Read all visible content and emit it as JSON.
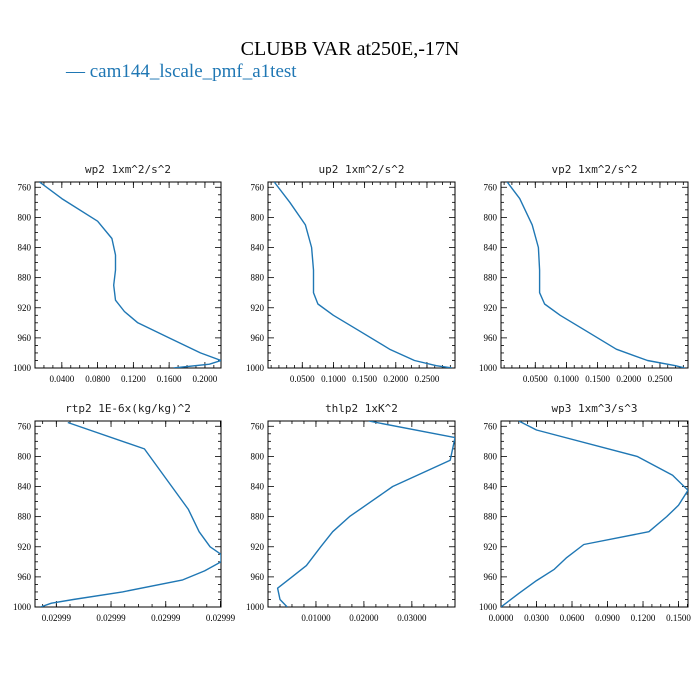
{
  "figure": {
    "title": "CLUBB VAR at250E,-17N",
    "legend": "— cam144_lscale_pmf_a1test"
  },
  "colors": {
    "series": "#1f77b4",
    "axis": "#000000"
  },
  "chart_data": [
    {
      "type": "line",
      "title": "wp2  1xm^2/s^2",
      "series": [
        {
          "name": "cam144_lscale_pmf_a1test",
          "x": [
            0.015,
            0.04,
            0.08,
            0.096,
            0.1,
            0.1,
            0.098,
            0.1,
            0.11,
            0.125,
            0.16,
            0.195,
            0.218,
            0.205,
            0.165
          ],
          "y": [
            753,
            775,
            805,
            828,
            850,
            870,
            890,
            910,
            925,
            940,
            960,
            980,
            990,
            995,
            1000
          ]
        }
      ],
      "xlim": [
        0.01,
        0.218
      ],
      "ylim": [
        1000,
        753
      ],
      "xticks": [
        0.04,
        0.08,
        0.12,
        0.16,
        0.2
      ],
      "xticklabels": [
        "0.0400",
        "0.0800",
        "0.1200",
        "0.1600",
        "0.2000"
      ],
      "yticks": [
        760,
        800,
        840,
        880,
        920,
        960,
        1000
      ],
      "yticklabels": [
        "760",
        "800",
        "840",
        "880",
        "920",
        "960",
        "1000"
      ]
    },
    {
      "type": "line",
      "title": "up2  1xm^2/s^2",
      "series": [
        {
          "name": "cam144_lscale_pmf_a1test",
          "x": [
            0.005,
            0.03,
            0.055,
            0.065,
            0.068,
            0.068,
            0.075,
            0.1,
            0.14,
            0.19,
            0.23,
            0.265,
            0.29
          ],
          "y": [
            753,
            780,
            810,
            840,
            870,
            900,
            915,
            930,
            950,
            975,
            990,
            997,
            1000
          ]
        }
      ],
      "xlim": [
        -0.005,
        0.295
      ],
      "ylim": [
        1000,
        753
      ],
      "xticks": [
        0.05,
        0.1,
        0.15,
        0.2,
        0.25
      ],
      "xticklabels": [
        "0.0500",
        "0.1000",
        "0.1500",
        "0.2000",
        "0.2500"
      ],
      "yticks": [
        760,
        800,
        840,
        880,
        920,
        960,
        1000
      ],
      "yticklabels": [
        "760",
        "800",
        "840",
        "880",
        "920",
        "960",
        "1000"
      ]
    },
    {
      "type": "line",
      "title": "vp2  1xm^2/s^2",
      "series": [
        {
          "name": "cam144_lscale_pmf_a1test",
          "x": [
            0.005,
            0.025,
            0.045,
            0.055,
            0.057,
            0.057,
            0.065,
            0.09,
            0.13,
            0.18,
            0.23,
            0.275,
            0.29
          ],
          "y": [
            753,
            775,
            810,
            840,
            870,
            900,
            915,
            930,
            950,
            975,
            990,
            997,
            1000
          ]
        }
      ],
      "xlim": [
        -0.005,
        0.295
      ],
      "ylim": [
        1000,
        753
      ],
      "xticks": [
        0.05,
        0.1,
        0.15,
        0.2,
        0.25
      ],
      "xticklabels": [
        "0.0500",
        "0.1000",
        "0.1500",
        "0.2000",
        "0.2500"
      ],
      "yticks": [
        760,
        800,
        840,
        880,
        920,
        960,
        1000
      ],
      "yticklabels": [
        "760",
        "800",
        "840",
        "880",
        "920",
        "960",
        "1000"
      ]
    },
    {
      "type": "line",
      "title": "rtp2  1E-6x(kg/kg)^2",
      "series": [
        {
          "name": "cam144_lscale_pmf_a1test",
          "x": [
            0.0299972,
            0.0299986,
            0.029999,
            0.0299994,
            0.0299996,
            0.0299998,
            0.03,
            0.03,
            0.0299997,
            0.0299993,
            0.0299982,
            0.0299973,
            0.0299969,
            0.0299967
          ],
          "y": [
            755,
            790,
            830,
            870,
            900,
            920,
            930,
            940,
            952,
            964,
            980,
            990,
            995,
            1000
          ]
        }
      ],
      "xlim": [
        0.0299966,
        0.03
      ],
      "ylim": [
        1000,
        753
      ],
      "xticks": [
        0.02999699,
        0.02999799,
        0.02999899,
        0.02999999
      ],
      "xticklabels": [
        "0.02999",
        "0.02999",
        "0.02999",
        "0.02999"
      ],
      "yticks": [
        760,
        800,
        840,
        880,
        920,
        960,
        1000
      ],
      "yticklabels": [
        "760",
        "800",
        "840",
        "880",
        "920",
        "960",
        "1000"
      ]
    },
    {
      "type": "line",
      "title": "thlp2  1xK^2",
      "series": [
        {
          "name": "cam144_lscale_pmf_a1test",
          "x": [
            0.021,
            0.039,
            0.038,
            0.026,
            0.0215,
            0.017,
            0.0135,
            0.011,
            0.008,
            0.005,
            0.002,
            0.0025,
            0.004
          ],
          "y": [
            753,
            775,
            805,
            840,
            860,
            880,
            900,
            920,
            945,
            960,
            975,
            990,
            1000
          ]
        }
      ],
      "xlim": [
        0.0,
        0.039
      ],
      "ylim": [
        1000,
        753
      ],
      "xticks": [
        0.01,
        0.02,
        0.03
      ],
      "xticklabels": [
        "0.01000",
        "0.02000",
        "0.03000"
      ],
      "yticks": [
        760,
        800,
        840,
        880,
        920,
        960,
        1000
      ],
      "yticklabels": [
        "760",
        "800",
        "840",
        "880",
        "920",
        "960",
        "1000"
      ]
    },
    {
      "type": "line",
      "title": "wp3  1xm^3/s^3",
      "series": [
        {
          "name": "cam144_lscale_pmf_a1test",
          "x": [
            0.015,
            0.03,
            0.115,
            0.145,
            0.158,
            0.15,
            0.14,
            0.125,
            0.07,
            0.055,
            0.045,
            0.03,
            0.015,
            0.0
          ],
          "y": [
            753,
            765,
            800,
            825,
            845,
            865,
            880,
            900,
            917,
            935,
            950,
            965,
            982,
            1000
          ]
        }
      ],
      "xlim": [
        0.0,
        0.158
      ],
      "ylim": [
        1000,
        753
      ],
      "xticks": [
        0.0,
        0.03,
        0.06,
        0.09,
        0.12,
        0.15
      ],
      "xticklabels": [
        "0.0000",
        "0.0300",
        "0.0600",
        "0.0900",
        "0.1200",
        "0.1500"
      ],
      "yticks": [
        760,
        800,
        840,
        880,
        920,
        960,
        1000
      ],
      "yticklabels": [
        "760",
        "800",
        "840",
        "880",
        "920",
        "960",
        "1000"
      ]
    }
  ]
}
